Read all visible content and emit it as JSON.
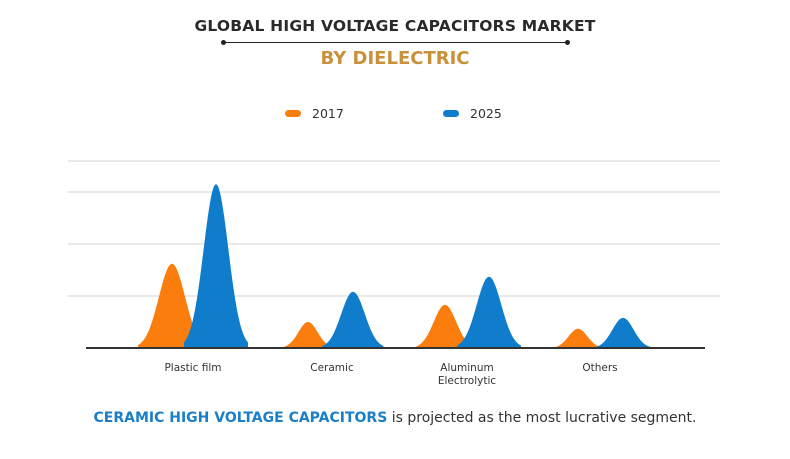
{
  "header": {
    "title": "GLOBAL HIGH VOLTAGE CAPACITORS MARKET",
    "subtitle": "BY DIELECTRIC"
  },
  "footer": {
    "highlight": "CERAMIC HIGH VOLTAGE CAPACITORS",
    "rest": " is projected as the most lucrative segment."
  },
  "colors": {
    "2017": "#fa7d0d",
    "2025": "#0f7dcc",
    "title": "#2a2a2a",
    "subtitle": "#c9913a",
    "highlight": "#1a7ec8"
  },
  "chart_data": {
    "type": "area",
    "title": "GLOBAL HIGH VOLTAGE CAPACITORS MARKET",
    "subtitle": "BY DIELECTRIC",
    "xlabel": "",
    "ylabel": "",
    "categories": [
      "Plastic film",
      "Ceramic",
      "Aluminum\nElectrolytic",
      "Others"
    ],
    "series": [
      {
        "name": "2017",
        "values": [
          1.62,
          0.5,
          0.83,
          0.37
        ]
      },
      {
        "name": "2025",
        "values": [
          3.15,
          1.08,
          1.37,
          0.58
        ]
      }
    ],
    "ylim": [
      0,
      3.6
    ],
    "yticks": [
      1,
      2,
      3,
      3.6
    ],
    "grid": true,
    "legend": "top-center",
    "note": "values relative to gridline spacing; no axis tick labels shown"
  }
}
